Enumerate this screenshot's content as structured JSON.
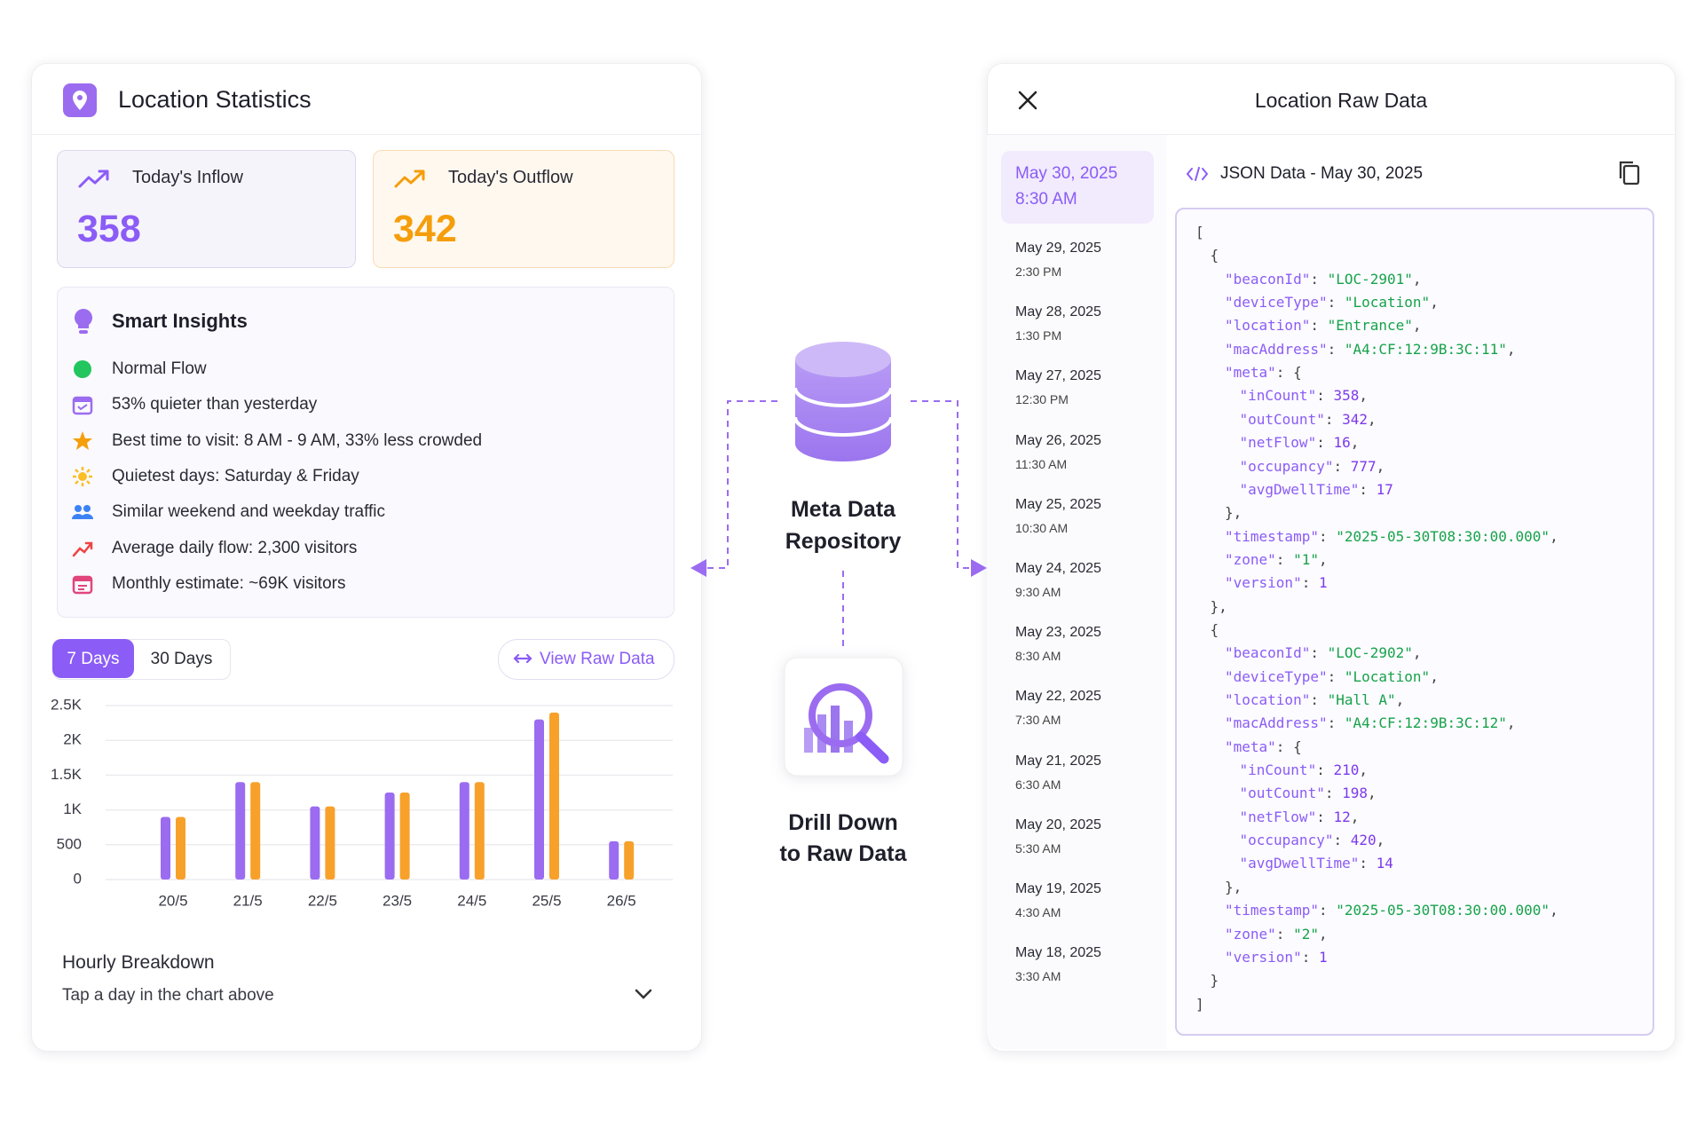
{
  "left": {
    "title": "Location Statistics",
    "inflow": {
      "label": "Today's Inflow",
      "value": "358"
    },
    "outflow": {
      "label": "Today's Outflow",
      "value": "342"
    },
    "insights": {
      "title": "Smart Insights",
      "items": [
        "Normal Flow",
        "53% quieter than yesterday",
        "Best time to visit: 8 AM - 9 AM, 33% less crowded",
        "Quietest days: Saturday & Friday",
        "Similar weekend and weekday traffic",
        "Average daily flow: 2,300 visitors",
        "Monthly estimate: ~69K visitors"
      ]
    },
    "tabs": [
      "7 Days",
      "30 Days"
    ],
    "raw_button": "View Raw Data",
    "hourly": {
      "title": "Hourly Breakdown",
      "subtitle": "Tap a day in the chart above"
    }
  },
  "chart_data": {
    "type": "bar",
    "categories": [
      "20/5",
      "21/5",
      "22/5",
      "23/5",
      "24/5",
      "25/5",
      "26/5"
    ],
    "series": [
      {
        "name": "Inflow",
        "color": "#9b6cf0",
        "values": [
          900,
          1400,
          1050,
          1250,
          1400,
          2300,
          550
        ]
      },
      {
        "name": "Outflow",
        "color": "#f7a12b",
        "values": [
          900,
          1400,
          1050,
          1250,
          1400,
          2400,
          550
        ]
      }
    ],
    "ylim": [
      0,
      2500
    ],
    "yticks": [
      {
        "value": 2500,
        "label": "2.5K"
      },
      {
        "value": 2000,
        "label": "2K"
      },
      {
        "value": 1500,
        "label": "1.5K"
      },
      {
        "value": 1000,
        "label": "1K"
      },
      500,
      0
    ],
    "grid": true
  },
  "middle": {
    "repository": [
      "Meta Data",
      "Repository"
    ],
    "drill": [
      "Drill Down",
      "to Raw Data"
    ]
  },
  "right": {
    "title": "Location Raw Data",
    "dates": [
      {
        "date": "May 30, 2025",
        "time": "8:30 AM"
      },
      {
        "date": "May 29, 2025",
        "time": "2:30 PM"
      },
      {
        "date": "May 28, 2025",
        "time": "1:30 PM"
      },
      {
        "date": "May 27, 2025",
        "time": "12:30 PM"
      },
      {
        "date": "May 26, 2025",
        "time": "11:30 AM"
      },
      {
        "date": "May 25, 2025",
        "time": "10:30 AM"
      },
      {
        "date": "May 24, 2025",
        "time": "9:30 AM"
      },
      {
        "date": "May 23, 2025",
        "time": "8:30 AM"
      },
      {
        "date": "May 22, 2025",
        "time": "7:30 AM"
      },
      {
        "date": "May 21, 2025",
        "time": "6:30 AM"
      },
      {
        "date": "May 20, 2025",
        "time": "5:30 AM"
      },
      {
        "date": "May 19, 2025",
        "time": "4:30 AM"
      },
      {
        "date": "May 18, 2025",
        "time": "3:30 AM"
      }
    ],
    "json_title": "JSON Data - May 30, 2025",
    "code": [
      [
        "["
      ],
      [
        "{"
      ],
      [
        "\"beaconId\"",
        ": ",
        "\"LOC-2901\"",
        ","
      ],
      [
        "\"deviceType\"",
        ": ",
        "\"Location\"",
        ","
      ],
      [
        "\"location\"",
        ": ",
        "\"Entrance\"",
        ","
      ],
      [
        "\"macAddress\"",
        ": ",
        "\"A4:CF:12:9B:3C:11\"",
        ","
      ],
      [
        "\"meta\"",
        ": ",
        "{"
      ],
      [
        "\"inCount\"",
        ": ",
        "358",
        ","
      ],
      [
        "\"outCount\"",
        ": ",
        "342",
        ","
      ],
      [
        "\"netFlow\"",
        ": ",
        "16",
        ","
      ],
      [
        "\"occupancy\"",
        ": ",
        "777",
        ","
      ],
      [
        "\"avgDwellTime\"",
        ": ",
        "17"
      ],
      [
        "},"
      ],
      [
        "\"timestamp\"",
        ": ",
        "\"2025-05-30T08:30:00.000\"",
        ","
      ],
      [
        "\"zone\"",
        ": ",
        "\"1\"",
        ","
      ],
      [
        "\"version\"",
        ": ",
        "1"
      ],
      [
        "},"
      ],
      [
        "{"
      ],
      [
        "\"beaconId\"",
        ": ",
        "\"LOC-2902\"",
        ","
      ],
      [
        "\"deviceType\"",
        ": ",
        "\"Location\"",
        ","
      ],
      [
        "\"location\"",
        ": ",
        "\"Hall A\"",
        ","
      ],
      [
        "\"macAddress\"",
        ": ",
        "\"A4:CF:12:9B:3C:12\"",
        ","
      ],
      [
        "\"meta\"",
        ": ",
        "{"
      ],
      [
        "\"inCount\"",
        ": ",
        "210",
        ","
      ],
      [
        "\"outCount\"",
        ": ",
        "198",
        ","
      ],
      [
        "\"netFlow\"",
        ": ",
        "12",
        ","
      ],
      [
        "\"occupancy\"",
        ": ",
        "420",
        ","
      ],
      [
        "\"avgDwellTime\"",
        ": ",
        "14"
      ],
      [
        "},"
      ],
      [
        "\"timestamp\"",
        ": ",
        "\"2025-05-30T08:30:00.000\"",
        ","
      ],
      [
        "\"zone\"",
        ": ",
        "\"2\"",
        ","
      ],
      [
        "\"version\"",
        ": ",
        "1"
      ],
      [
        "}"
      ],
      [
        "]"
      ]
    ]
  }
}
